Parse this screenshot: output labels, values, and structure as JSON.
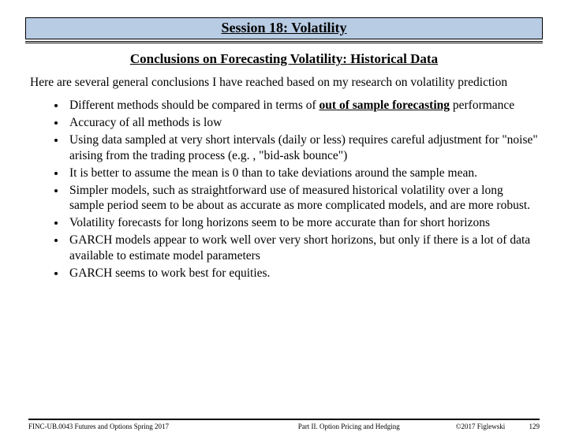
{
  "banner": {
    "title": "Session 18:  Volatility",
    "bg": "#b8cce4"
  },
  "subtitle": "Conclusions on Forecasting Volatility: Historical Data",
  "intro": "Here are several general conclusions I have reached based on my research on volatility prediction",
  "bullets": {
    "b1_pre": "Different methods should be compared in terms of ",
    "b1_emph": "out of sample forecasting",
    "b1_post": " performance",
    "b2": "Accuracy of all methods is low",
    "b3": "Using data sampled at very short intervals (daily or less) requires careful adjustment for \"noise\" arising from the trading process (e.g. , \"bid-ask bounce\")",
    "b4": "It is better to assume the mean is 0 than to take deviations around the sample mean.",
    "b5": "Simpler models, such as straightforward use of measured historical volatility over a long sample period seem to be about as accurate as more complicated models, and are more robust.",
    "b6": "Volatility forecasts for long horizons seem to be more accurate than for short horizons",
    "b7": "GARCH models appear to work well over very short horizons, but only if there is a lot of data available to estimate model parameters",
    "b8": "GARCH seems to work best for equities."
  },
  "footer": {
    "left": "FINC-UB.0043 Futures and Options Spring 2017",
    "center": "Part II. Option Pricing and Hedging",
    "right": "©2017 Figlewski",
    "page": "129"
  }
}
